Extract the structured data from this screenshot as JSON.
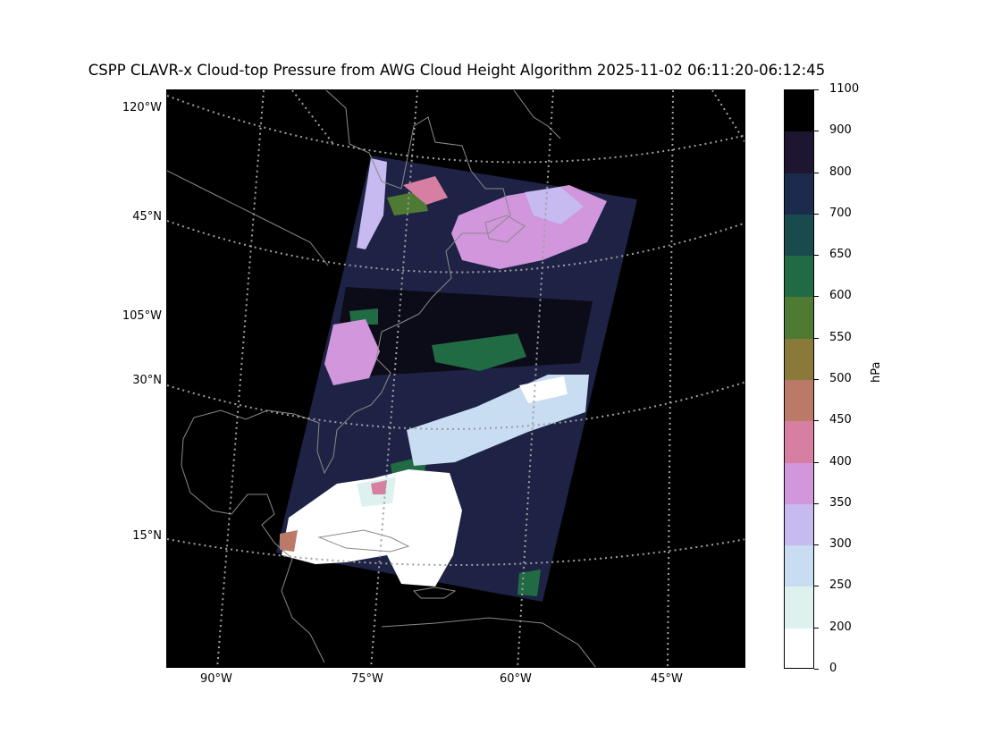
{
  "title": "CSPP CLAVR-x Cloud-top Pressure from AWG Cloud Height Algorithm 2025-11-02 06:11:20-06:12:45",
  "map": {
    "lat_labels": [
      "45°N",
      "30°N",
      "15°N"
    ],
    "lon_labels_left": [
      "120°W",
      "105°W"
    ],
    "lon_labels_bottom": [
      "90°W",
      "75°W",
      "60°W",
      "45°W"
    ],
    "background_color": "#000000",
    "coastline_color": "#8a8a8a",
    "gridline_color": "#a0a0a0"
  },
  "colorbar": {
    "label": "hPa",
    "ticks": [
      "1100",
      "900",
      "800",
      "700",
      "650",
      "600",
      "550",
      "500",
      "450",
      "400",
      "350",
      "300",
      "250",
      "200",
      "0"
    ],
    "colors": [
      "#000000",
      "#1e1530",
      "#1c2a4c",
      "#174b4e",
      "#216b44",
      "#4f7a34",
      "#8a7a3a",
      "#bb7a68",
      "#d77fa2",
      "#d196db",
      "#c6baf0",
      "#c8dcf2",
      "#ddf2ee",
      "#ffffff"
    ]
  }
}
